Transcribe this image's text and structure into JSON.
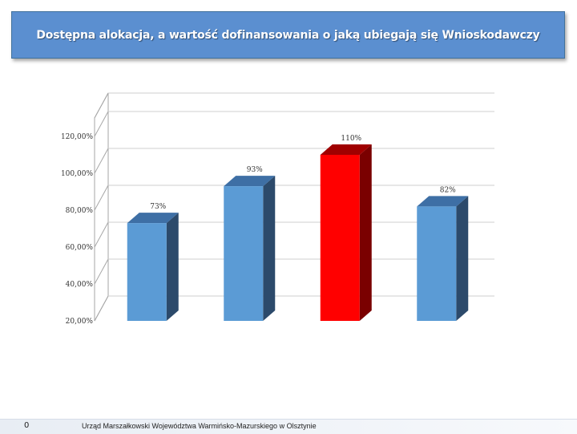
{
  "slide": {
    "title": "Dostępna alokacja, a wartość dofinansowania o jaką ubiegają się Wnioskodawczy",
    "footer": "Urząd Marszałkowski Województwa Warmińsko-Mazurskiego w Olsztynie",
    "page_number": "0"
  },
  "chart_data": {
    "type": "bar",
    "style": "3d-column",
    "title": "",
    "xlabel": "",
    "ylabel": "",
    "categories": [
      "",
      "",
      "",
      ""
    ],
    "values": [
      73,
      93,
      110,
      82
    ],
    "data_labels": [
      "73%",
      "93%",
      "110%",
      "82%"
    ],
    "ylim": [
      20,
      120
    ],
    "yticks": [
      20,
      40,
      60,
      80,
      100,
      120
    ],
    "ytick_labels": [
      "20,00%",
      "40,00%",
      "60,00%",
      "80,00%",
      "100,00%",
      "120,00%"
    ],
    "grid": true,
    "legend": "none",
    "colors": {
      "bar": "#5b9bd5",
      "bar_top": "#3e6fa5",
      "bar_side": "#2c4a6b",
      "highlight": "#ff0000",
      "highlight_top": "#a00000",
      "highlight_side": "#7a0000",
      "grid": "#a6a6a6"
    },
    "highlight_index": 2
  }
}
